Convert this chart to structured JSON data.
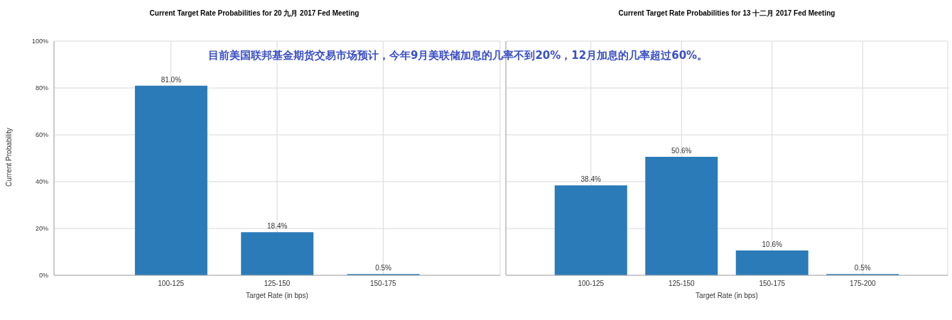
{
  "chart_data": [
    {
      "type": "bar",
      "title": "Current Target Rate Probabilities for 20 九月 2017 Fed Meeting",
      "xlabel": "Target Rate (in bps)",
      "ylabel": "Current Probability",
      "categories": [
        "100-125",
        "125-150",
        "150-175"
      ],
      "values": [
        81.0,
        18.4,
        0.5
      ],
      "value_labels": [
        "81.0%",
        "18.4%",
        "0.5%"
      ],
      "color": "#2b7bb9",
      "ylim": [
        0,
        100
      ],
      "yticks": [
        {
          "value": 0,
          "label": "0%"
        },
        {
          "value": 20,
          "label": "20%"
        },
        {
          "value": 40,
          "label": "40%"
        },
        {
          "value": 60,
          "label": "60%"
        },
        {
          "value": 80,
          "label": "80%"
        },
        {
          "value": 100,
          "label": "100%"
        }
      ],
      "grid": true,
      "annotations": [
        "目前美国联邦基金期货交易市场预计，今年9月美联储加息的几率不到20%，12月加息的几率超过60%。"
      ]
    },
    {
      "type": "bar",
      "title": "Current Target Rate Probabilities for 13 十二月 2017 Fed Meeting",
      "xlabel": "Target Rate (in bps)",
      "categories": [
        "100-125",
        "125-150",
        "150-175",
        "175-200"
      ],
      "values": [
        38.4,
        50.6,
        10.6,
        0.5
      ],
      "value_labels": [
        "38.4%",
        "50.6%",
        "10.6%",
        "0.5%"
      ],
      "color": "#2b7bb9",
      "ylim": [
        0,
        100
      ],
      "yticks": [
        0,
        20,
        40,
        60,
        80,
        100
      ],
      "grid": true,
      "tick_labels": "x"
    }
  ]
}
